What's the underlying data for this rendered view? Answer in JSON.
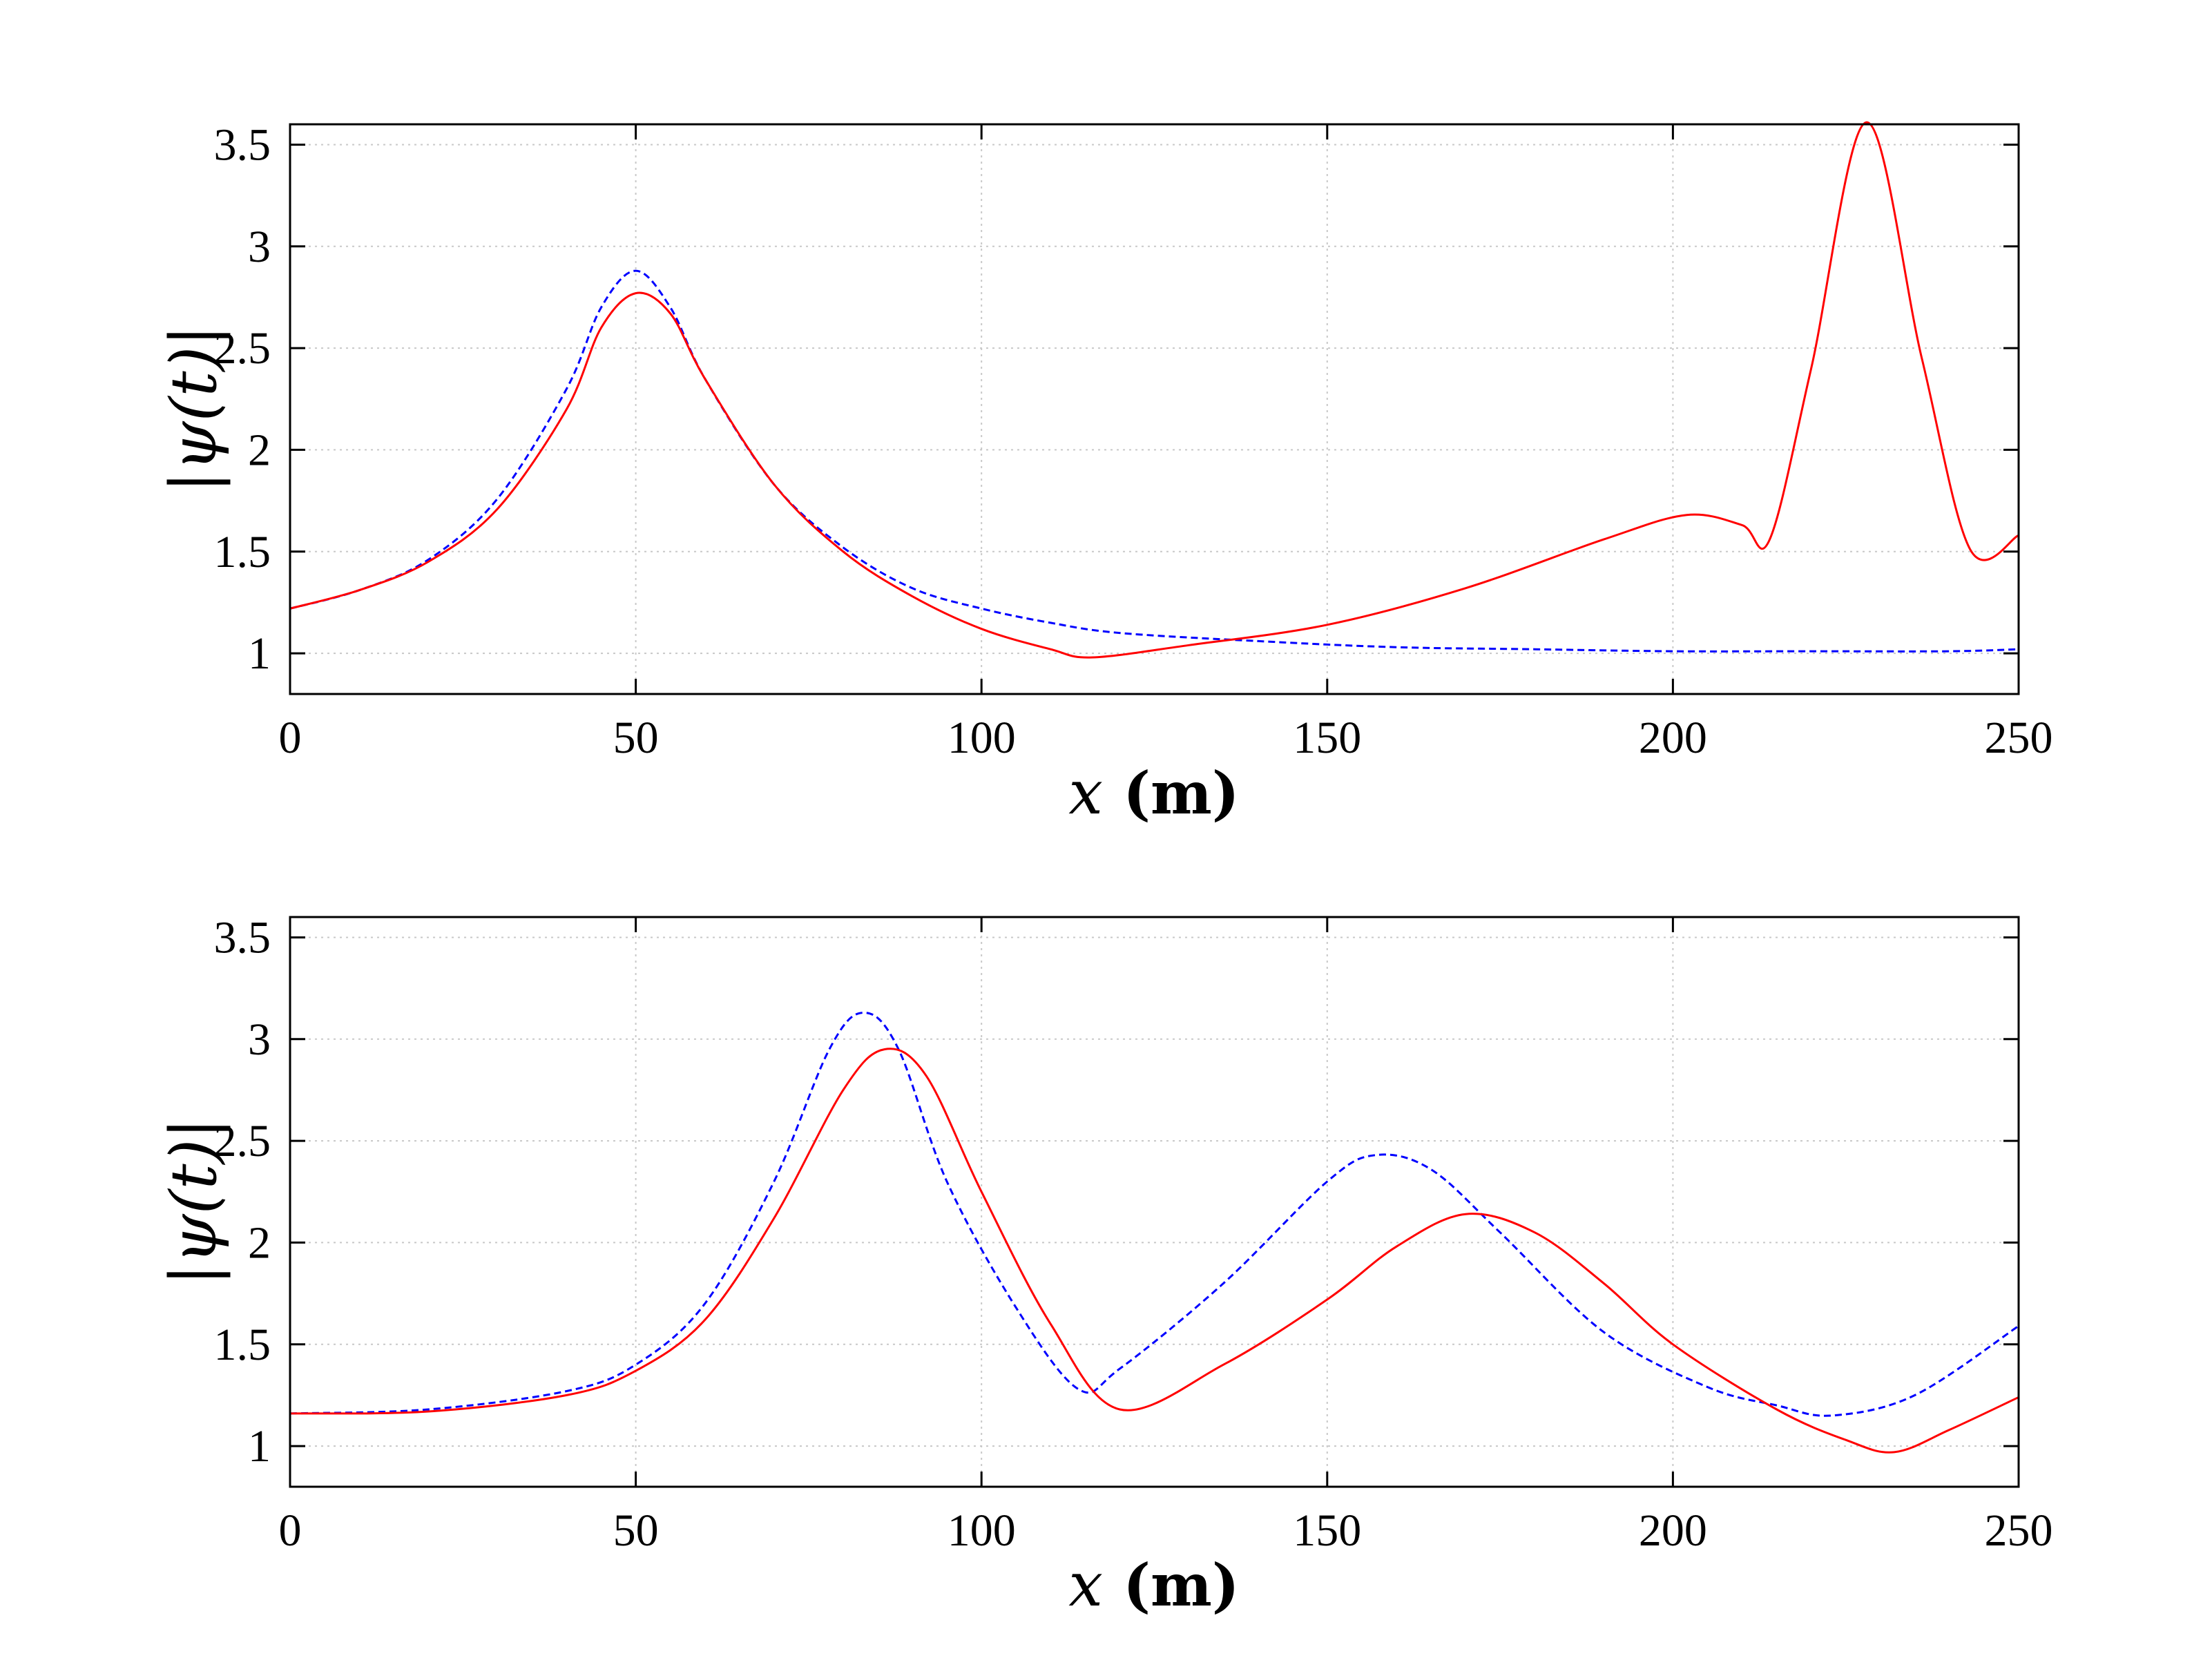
{
  "chart_data": [
    {
      "type": "line",
      "xlabel": "x (m)",
      "ylabel": "|ψ(t)|",
      "xlim": [
        0,
        250
      ],
      "ylim": [
        0.8,
        3.6
      ],
      "xticks": [
        "0",
        "50",
        "100",
        "150",
        "200",
        "250"
      ],
      "yticks": [
        "1",
        "1.5",
        "2",
        "2.5",
        "3",
        "3.5"
      ],
      "grid": true,
      "series": [
        {
          "color": "#0000ff",
          "style": "dashed",
          "x": [
            0,
            10,
            20,
            30,
            40,
            45,
            50,
            55,
            60,
            70,
            80,
            90,
            100,
            110,
            120,
            140,
            160,
            180,
            200,
            220,
            240,
            250
          ],
          "y": [
            1.22,
            1.31,
            1.46,
            1.76,
            2.3,
            2.7,
            2.88,
            2.7,
            2.35,
            1.83,
            1.52,
            1.32,
            1.22,
            1.15,
            1.1,
            1.06,
            1.03,
            1.02,
            1.01,
            1.01,
            1.01,
            1.02
          ]
        },
        {
          "color": "#ff0000",
          "style": "solid",
          "x": [
            0,
            10,
            20,
            30,
            40,
            45,
            50,
            55,
            60,
            70,
            80,
            90,
            100,
            110,
            116,
            130,
            150,
            170,
            190,
            202,
            210,
            214,
            220,
            228,
            236,
            243,
            250
          ],
          "y": [
            1.22,
            1.31,
            1.45,
            1.71,
            2.2,
            2.6,
            2.77,
            2.67,
            2.35,
            1.83,
            1.5,
            1.28,
            1.12,
            1.02,
            0.98,
            1.04,
            1.14,
            1.32,
            1.56,
            1.68,
            1.63,
            1.56,
            2.4,
            3.61,
            2.45,
            1.51,
            1.58
          ]
        }
      ]
    },
    {
      "type": "line",
      "xlabel": "x (m)",
      "ylabel": "|ψ(t)|",
      "xlim": [
        0,
        250
      ],
      "ylim": [
        0.8,
        3.6
      ],
      "xticks": [
        "0",
        "50",
        "100",
        "150",
        "200",
        "250"
      ],
      "yticks": [
        "1",
        "1.5",
        "2",
        "2.5",
        "3",
        "3.5"
      ],
      "grid": true,
      "series": [
        {
          "color": "#0000ff",
          "style": "dashed",
          "x": [
            0,
            20,
            40,
            50,
            60,
            70,
            78,
            83,
            88,
            95,
            105,
            114,
            120,
            135,
            150,
            157,
            165,
            175,
            190,
            205,
            215,
            223,
            235,
            250
          ],
          "y": [
            1.16,
            1.18,
            1.27,
            1.4,
            1.7,
            2.3,
            2.95,
            3.13,
            2.95,
            2.3,
            1.68,
            1.28,
            1.38,
            1.8,
            2.3,
            2.43,
            2.36,
            2.05,
            1.56,
            1.29,
            1.2,
            1.15,
            1.25,
            1.59
          ]
        },
        {
          "color": "#ff0000",
          "style": "solid",
          "x": [
            0,
            20,
            40,
            50,
            60,
            70,
            80,
            86,
            92,
            100,
            110,
            120,
            135,
            150,
            160,
            170,
            180,
            190,
            200,
            215,
            225,
            232,
            240,
            250
          ],
          "y": [
            1.16,
            1.17,
            1.25,
            1.37,
            1.62,
            2.12,
            2.75,
            2.95,
            2.82,
            2.25,
            1.6,
            1.18,
            1.4,
            1.72,
            1.98,
            2.14,
            2.05,
            1.8,
            1.5,
            1.18,
            1.03,
            0.97,
            1.08,
            1.24
          ]
        }
      ]
    }
  ]
}
